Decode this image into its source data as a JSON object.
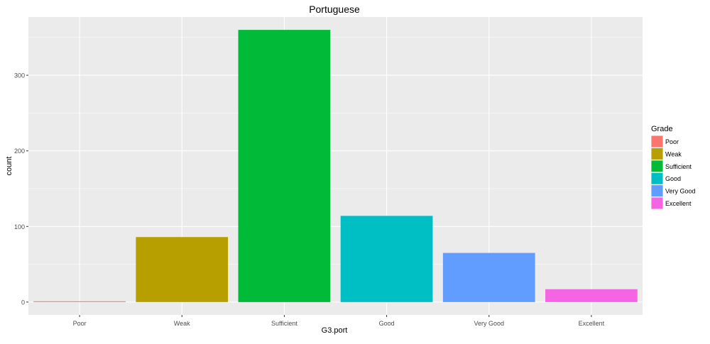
{
  "chart_data": {
    "type": "bar",
    "title": "Portuguese",
    "xlabel": "G3.port",
    "ylabel": "count",
    "categories": [
      "Poor",
      "Weak",
      "Sufficient",
      "Good",
      "Very Good",
      "Excellent"
    ],
    "values": [
      1,
      86,
      360,
      114,
      65,
      17
    ],
    "colors": [
      "#F8766D",
      "#B79F00",
      "#00BA38",
      "#00BFC4",
      "#619CFF",
      "#F564E3"
    ],
    "yticks": [
      0,
      100,
      200,
      300
    ],
    "ylim": [
      -17,
      377
    ],
    "grid": true,
    "legend": {
      "title": "Grade",
      "position": "right",
      "entries": [
        "Poor",
        "Weak",
        "Sufficient",
        "Good",
        "Very Good",
        "Excellent"
      ]
    },
    "background_color": "#EBEBEB",
    "grid_color": "#FFFFFF"
  }
}
